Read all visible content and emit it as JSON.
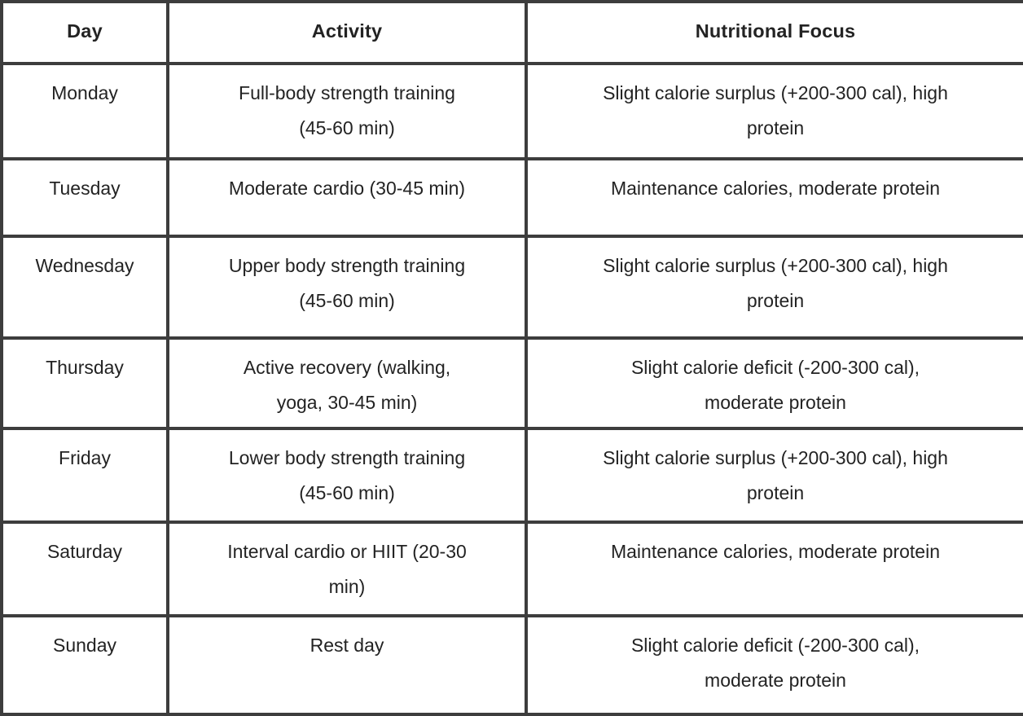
{
  "table": {
    "columns": [
      {
        "label": "Day"
      },
      {
        "label": "Activity"
      },
      {
        "label": "Nutritional Focus"
      }
    ],
    "rows": [
      {
        "day": "Monday",
        "activity": "Full-body strength training\n(45-60 min)",
        "nutrition": "Slight calorie surplus (+200-300 cal), high\nprotein"
      },
      {
        "day": "Tuesday",
        "activity": "Moderate cardio (30-45 min)",
        "nutrition": "Maintenance calories, moderate protein"
      },
      {
        "day": "Wednesday",
        "activity": "Upper body strength training\n(45-60 min)",
        "nutrition": "Slight calorie surplus (+200-300 cal), high\nprotein"
      },
      {
        "day": "Thursday",
        "activity": "Active recovery (walking,\nyoga, 30-45 min)",
        "nutrition": "Slight calorie deficit (-200-300 cal),\nmoderate protein"
      },
      {
        "day": "Friday",
        "activity": "Lower body strength training\n(45-60 min)",
        "nutrition": "Slight calorie surplus (+200-300 cal), high\nprotein"
      },
      {
        "day": "Saturday",
        "activity": "Interval cardio or HIIT (20-30\nmin)",
        "nutrition": "Maintenance calories, moderate protein"
      },
      {
        "day": "Sunday",
        "activity": "Rest day",
        "nutrition": "Slight calorie deficit (-200-300 cal),\nmoderate protein"
      }
    ],
    "colors": {
      "border": "#3d3d3d",
      "text": "#232323",
      "background": "#ffffff"
    }
  }
}
